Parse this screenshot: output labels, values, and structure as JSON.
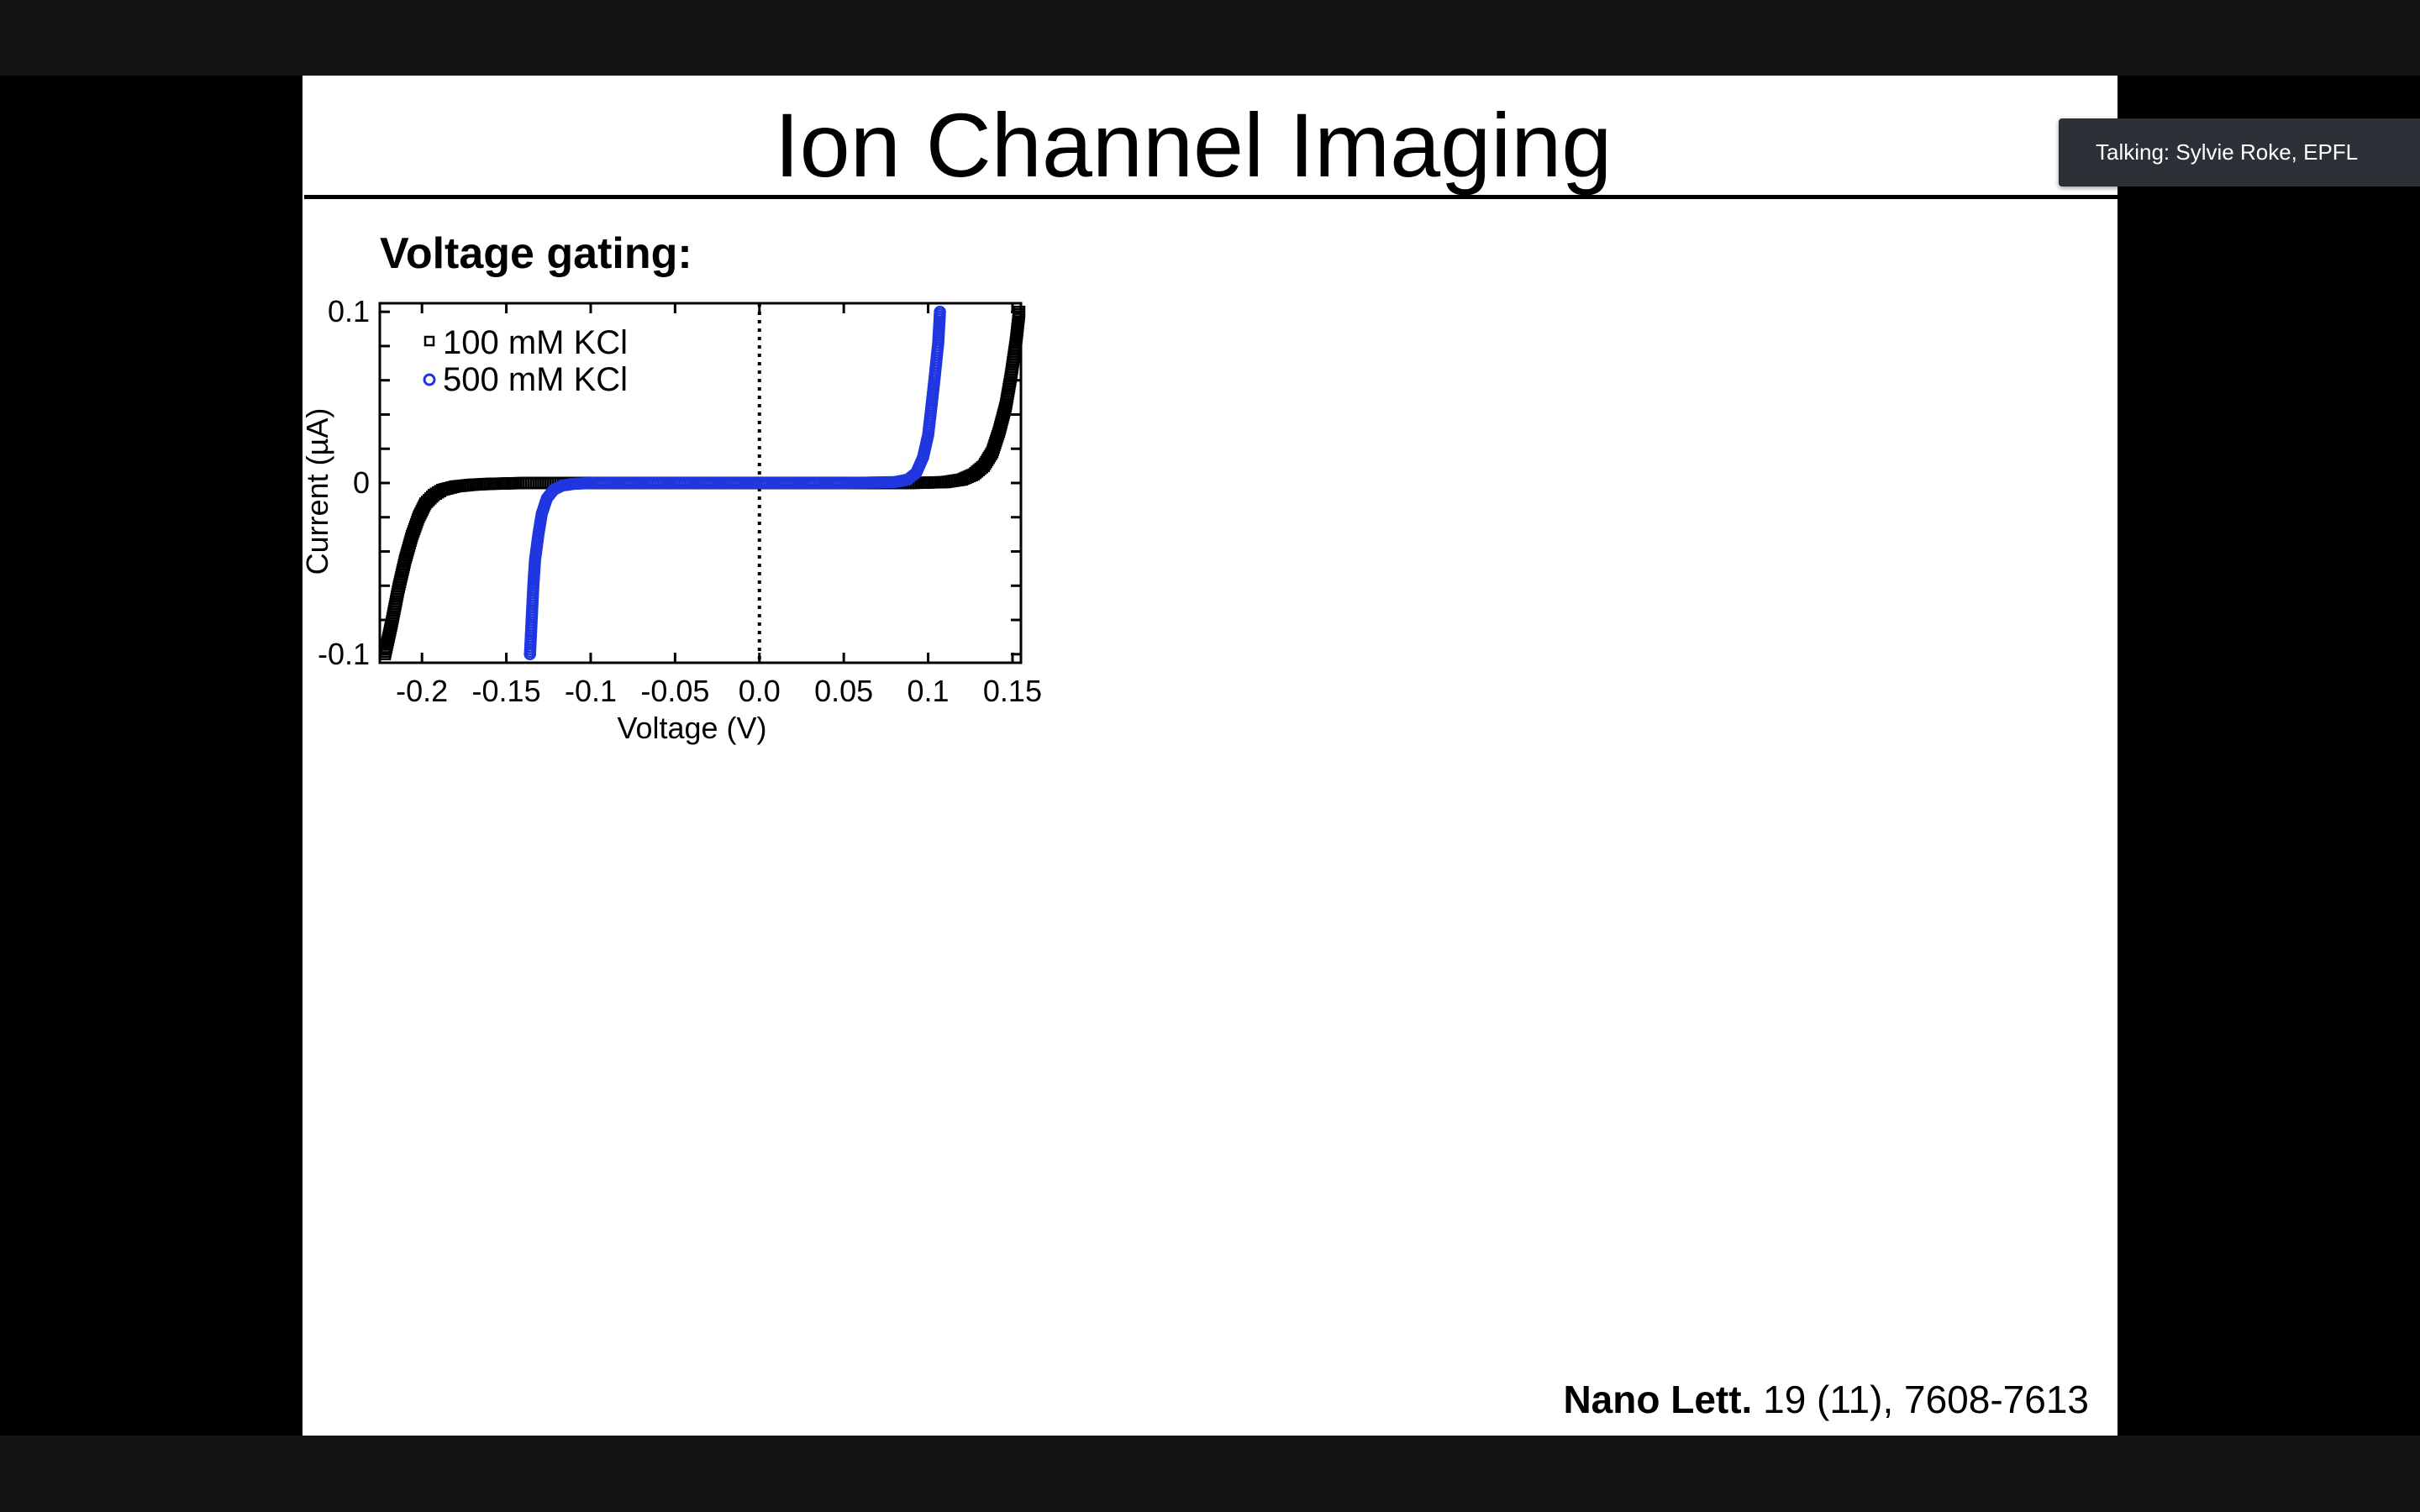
{
  "slide": {
    "title": "Ion Channel Imaging",
    "section_heading": "Voltage gating:",
    "citation": {
      "journal": "Nano Lett.",
      "reference": "19 (11), 7608-7613"
    }
  },
  "meeting": {
    "talking_indicator": "Talking: Sylvie Roke, EPFL"
  },
  "colors": {
    "series_100mM": "#000000",
    "series_500mM": "#1f36e0",
    "window_bar": "#141414",
    "talking_badge_bg": "#2c3138"
  },
  "chart_data": {
    "type": "scatter",
    "title": "",
    "xlabel": "Voltage (V)",
    "ylabel": "Current (µA)",
    "xlim": [
      -0.225,
      0.155
    ],
    "ylim": [
      -0.105,
      0.105
    ],
    "x_ticks": [
      -0.2,
      -0.15,
      -0.1,
      -0.05,
      0.0,
      0.05,
      0.1,
      0.15
    ],
    "x_tick_labels": [
      "-0.2",
      "-0.15",
      "-0.1",
      "-0.05",
      "0.0",
      "0.05",
      "0.1",
      "0.15"
    ],
    "y_ticks": [
      -0.1,
      0,
      0.1
    ],
    "y_tick_labels": [
      "-0.1",
      "0",
      "0.1"
    ],
    "legend_position": "top-left",
    "reference_line": {
      "x": 0.0,
      "style": "dotted"
    },
    "series": [
      {
        "name": "100 mM KCl",
        "marker": "square",
        "color": "#000000",
        "points": [
          [
            -0.222,
            -0.1
          ],
          [
            -0.218,
            -0.082
          ],
          [
            -0.214,
            -0.062
          ],
          [
            -0.21,
            -0.045
          ],
          [
            -0.206,
            -0.031
          ],
          [
            -0.202,
            -0.02
          ],
          [
            -0.198,
            -0.012
          ],
          [
            -0.193,
            -0.007
          ],
          [
            -0.188,
            -0.004
          ],
          [
            -0.18,
            -0.002
          ],
          [
            -0.17,
            -0.001
          ],
          [
            -0.16,
            -0.0005
          ],
          [
            -0.14,
            0.0
          ],
          [
            -0.1,
            0.0
          ],
          [
            -0.05,
            0.0
          ],
          [
            0.0,
            0.0
          ],
          [
            0.05,
            0.0
          ],
          [
            0.09,
            0.0
          ],
          [
            0.11,
            0.0005
          ],
          [
            0.12,
            0.002
          ],
          [
            0.127,
            0.005
          ],
          [
            0.133,
            0.01
          ],
          [
            0.138,
            0.018
          ],
          [
            0.142,
            0.03
          ],
          [
            0.146,
            0.045
          ],
          [
            0.149,
            0.062
          ],
          [
            0.152,
            0.082
          ],
          [
            0.154,
            0.1
          ]
        ]
      },
      {
        "name": "500 mM KCl",
        "marker": "circle",
        "color": "#1f36e0",
        "points": [
          [
            -0.136,
            -0.1
          ],
          [
            -0.135,
            -0.08
          ],
          [
            -0.134,
            -0.06
          ],
          [
            -0.133,
            -0.045
          ],
          [
            -0.131,
            -0.03
          ],
          [
            -0.129,
            -0.018
          ],
          [
            -0.126,
            -0.009
          ],
          [
            -0.122,
            -0.004
          ],
          [
            -0.117,
            -0.0015
          ],
          [
            -0.11,
            -0.0005
          ],
          [
            -0.1,
            0.0
          ],
          [
            -0.05,
            0.0
          ],
          [
            0.0,
            0.0
          ],
          [
            0.05,
            0.0
          ],
          [
            0.08,
            0.0005
          ],
          [
            0.088,
            0.002
          ],
          [
            0.093,
            0.006
          ],
          [
            0.097,
            0.015
          ],
          [
            0.1,
            0.028
          ],
          [
            0.102,
            0.045
          ],
          [
            0.104,
            0.063
          ],
          [
            0.106,
            0.082
          ],
          [
            0.107,
            0.1
          ]
        ]
      }
    ]
  }
}
